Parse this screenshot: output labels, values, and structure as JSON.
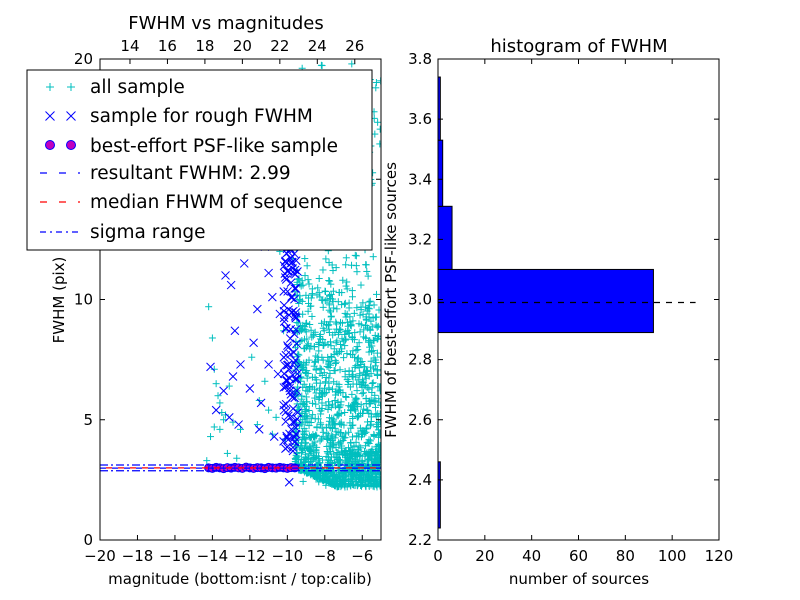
{
  "figure": {
    "background": "#ffffff"
  },
  "chart_data": [
    {
      "type": "scatter",
      "title": "FWHM vs magnitudes",
      "xlabel": "magnitude (bottom:isnt / top:calib)",
      "ylabel": "FWHM (pix)",
      "xlim": [
        -20,
        -5
      ],
      "ylim": [
        0,
        20
      ],
      "xticks": [
        "−20",
        "−18",
        "−16",
        "−14",
        "−12",
        "−10",
        "−8",
        "−6"
      ],
      "yticks": [
        "0",
        "5",
        "10",
        "15",
        "20"
      ],
      "top_axis": {
        "offset_to_calib": 32.4,
        "ticks": [
          "14",
          "16",
          "18",
          "20",
          "22",
          "24",
          "26"
        ]
      },
      "grid": false,
      "legend_placement": "upper-left",
      "series": [
        {
          "name": "all sample",
          "marker": "+",
          "color": "#00bfbf",
          "points": [
            [
              -14.2,
              13.3
            ],
            [
              -14.2,
              9.7
            ],
            [
              -14.0,
              8.4
            ],
            [
              -13.9,
              7.1
            ],
            [
              -13.8,
              6.5
            ],
            [
              -13.7,
              6.0
            ],
            [
              -13.6,
              5.7
            ],
            [
              -13.5,
              5.3
            ],
            [
              -13.4,
              5.0
            ],
            [
              -13.6,
              4.6
            ],
            [
              -14.1,
              4.3
            ],
            [
              -13.9,
              4.7
            ],
            [
              -13.3,
              5.2
            ],
            [
              -13.1,
              6.4
            ],
            [
              -12.9,
              4.9
            ],
            [
              -12.5,
              4.6
            ],
            [
              -12.3,
              13.6
            ],
            [
              -12.1,
              12.9
            ],
            [
              -11.9,
              7.6
            ],
            [
              -11.6,
              4.8
            ],
            [
              -11.5,
              5.8
            ],
            [
              -11.2,
              6.6
            ],
            [
              -11.0,
              5.4
            ],
            [
              -10.8,
              4.4
            ],
            [
              -10.6,
              5.1
            ],
            [
              -10.4,
              12.0
            ],
            [
              -10.2,
              8.7
            ],
            [
              -10.1,
              4.2
            ],
            [
              -9.95,
              14.2
            ],
            [
              -9.8,
              12.2
            ],
            [
              -9.7,
              11.7
            ],
            [
              -14.3,
              3.3
            ],
            [
              -13.2,
              3.6
            ],
            [
              -12.7,
              3.4
            ]
          ],
          "cloud": {
            "x_range": [
              -9.6,
              -5.0
            ],
            "y_range": [
              2.2,
              19.8
            ],
            "median_y": 5.8,
            "count": 1500
          }
        },
        {
          "name": "sample for rough FWHM",
          "marker": "x",
          "color": "#0000ff",
          "points": [
            [
              -14.1,
              7.2
            ],
            [
              -13.8,
              5.4
            ],
            [
              -13.4,
              6.2
            ],
            [
              -13.3,
              11.0
            ],
            [
              -13.1,
              5.1
            ],
            [
              -13.0,
              10.6
            ],
            [
              -12.8,
              8.7
            ],
            [
              -12.6,
              4.8
            ],
            [
              -12.5,
              7.3
            ],
            [
              -12.3,
              11.5
            ],
            [
              -12.2,
              15.1
            ],
            [
              -12.0,
              6.3
            ],
            [
              -11.9,
              13.9
            ],
            [
              -11.8,
              8.2
            ],
            [
              -11.6,
              9.6
            ],
            [
              -11.5,
              4.6
            ],
            [
              -11.4,
              5.7
            ],
            [
              -11.2,
              12.2
            ],
            [
              -11.0,
              7.3
            ],
            [
              -10.9,
              13.0
            ],
            [
              -10.8,
              10.1
            ],
            [
              -10.7,
              4.3
            ],
            [
              -10.6,
              14.6
            ],
            [
              -10.5,
              6.9
            ],
            [
              -10.4,
              9.4
            ],
            [
              -10.3,
              12.8
            ],
            [
              -10.2,
              5.6
            ],
            [
              -10.1,
              11.6
            ],
            [
              -10.05,
              8.8
            ],
            [
              -9.9,
              15.3
            ],
            [
              -9.85,
              6.2
            ],
            [
              -9.8,
              10.7
            ],
            [
              -9.75,
              13.7
            ],
            [
              -9.7,
              4.9
            ],
            [
              -9.65,
              7.8
            ],
            [
              -9.62,
              11.9
            ],
            [
              -9.58,
              9.3
            ],
            [
              -9.55,
              4.4
            ],
            [
              -9.52,
              14.2
            ],
            [
              -9.5,
              6.7
            ],
            [
              -9.48,
              12.5
            ],
            [
              -9.45,
              5.3
            ],
            [
              -9.9,
              2.4
            ],
            [
              -10.1,
              3.8
            ],
            [
              -10.2,
              4.1
            ],
            [
              -9.7,
              3.7
            ],
            [
              -11.0,
              11.1
            ],
            [
              -12.9,
              6.8
            ]
          ]
        },
        {
          "name": "best-effort PSF-like sample",
          "marker": "o",
          "color": "#bf00bf",
          "edge_color": "#0000ff",
          "points": [
            [
              -14.2,
              3.0
            ],
            [
              -14.0,
              2.98
            ],
            [
              -13.8,
              3.02
            ],
            [
              -13.6,
              3.0
            ],
            [
              -13.4,
              2.97
            ],
            [
              -13.2,
              3.01
            ],
            [
              -13.0,
              2.99
            ],
            [
              -12.8,
              3.02
            ],
            [
              -12.6,
              3.0
            ],
            [
              -12.4,
              2.98
            ],
            [
              -12.2,
              3.03
            ],
            [
              -12.0,
              3.0
            ],
            [
              -11.8,
              2.98
            ],
            [
              -11.6,
              3.01
            ],
            [
              -11.4,
              3.0
            ],
            [
              -11.2,
              2.97
            ],
            [
              -11.0,
              3.02
            ],
            [
              -10.8,
              3.0
            ],
            [
              -10.6,
              2.99
            ],
            [
              -10.4,
              3.02
            ],
            [
              -10.2,
              3.0
            ],
            [
              -10.0,
              2.98
            ],
            [
              -9.8,
              3.01
            ],
            [
              -9.6,
              3.0
            ]
          ]
        },
        {
          "name": "resultant FWHM: 2.99",
          "marker": "dashed-line",
          "color": "#0000ff",
          "y": 2.99
        },
        {
          "name": "median FHWM of sequence",
          "marker": "dashed-line",
          "color": "#ff0000",
          "y": 3.0
        },
        {
          "name": "sigma range",
          "marker": "dashdot-line",
          "color": "#0000ff",
          "y_values": [
            2.88,
            3.12
          ]
        }
      ]
    },
    {
      "type": "bar",
      "orientation": "horizontal",
      "title": "histogram of FWHM",
      "xlabel": "number of sources",
      "ylabel": "FWHM of best-effort PSF-like sources",
      "xlim": [
        0,
        120
      ],
      "ylim": [
        2.2,
        3.8
      ],
      "xticks": [
        "0",
        "20",
        "40",
        "60",
        "80",
        "100",
        "120"
      ],
      "yticks": [
        "2.2",
        "2.4",
        "2.6",
        "2.8",
        "3.0",
        "3.2",
        "3.4",
        "3.6",
        "3.8"
      ],
      "bar_color": "#0000ff",
      "bins": [
        {
          "y0": 2.24,
          "y1": 2.46,
          "count": 1
        },
        {
          "y0": 2.89,
          "y1": 3.1,
          "count": 92
        },
        {
          "y0": 3.1,
          "y1": 3.31,
          "count": 6
        },
        {
          "y0": 3.31,
          "y1": 3.53,
          "count": 2
        },
        {
          "y0": 3.53,
          "y1": 3.74,
          "count": 1
        }
      ],
      "reference_line": {
        "y": 2.99,
        "style": "dashed",
        "color": "#000000",
        "x_range": [
          0,
          110
        ]
      }
    }
  ]
}
